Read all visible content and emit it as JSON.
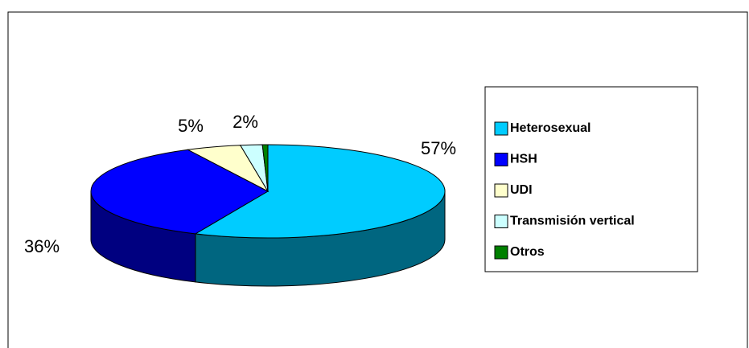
{
  "chart_data": {
    "type": "pie",
    "categories": [
      "Heterosexual",
      "HSH",
      "UDI",
      "Transmisión vertical",
      "Otros"
    ],
    "values": [
      57,
      36,
      5,
      2,
      0.5
    ],
    "value_labels": [
      "57%",
      "36%",
      "5%",
      "2%",
      null
    ],
    "colors": [
      "#00ccff",
      "#0000ff",
      "#ffffcc",
      "#ccffff",
      "#008000"
    ],
    "legend": "right"
  }
}
